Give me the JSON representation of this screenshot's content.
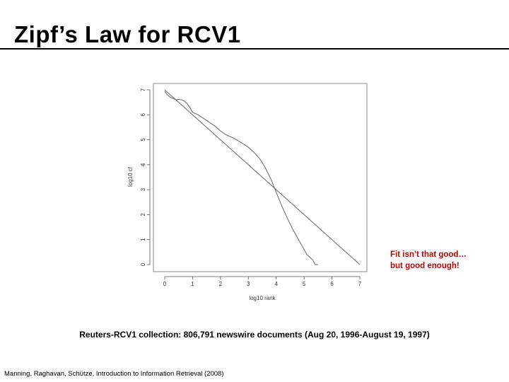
{
  "slide": {
    "title": "Zipf’s Law for RCV1",
    "callout_line1": "Fit isn’t that good…",
    "callout_line2": "but good enough!",
    "caption": "Reuters-RCV1 collection: 806,791 newswire documents (Aug 20, 1996-August 19, 1997)",
    "citation": "Manning, Raghavan, Schütze, Introduction to Information Retrieval (2008)",
    "title_color": "#000000",
    "callout_color": "#c00000"
  },
  "chart_data": {
    "type": "line",
    "title": "",
    "xlabel": "log10 rank",
    "ylabel": "log10 cf",
    "xlim": [
      0,
      7
    ],
    "ylim": [
      0,
      7
    ],
    "x_ticks": [
      0,
      1,
      2,
      3,
      4,
      5,
      6,
      7
    ],
    "y_ticks": [
      0,
      1,
      2,
      3,
      4,
      5,
      6,
      7
    ],
    "grid": false,
    "series": [
      {
        "x": [
          0,
          0.1,
          0.2,
          0.3,
          0.4,
          0.5,
          0.6,
          0.7,
          0.8,
          0.9,
          1.0,
          1.2,
          1.4,
          1.6,
          1.8,
          2.0,
          2.2,
          2.5,
          2.8,
          3.0,
          3.2,
          3.4,
          3.6,
          3.8,
          4.0,
          4.2,
          4.4,
          4.6,
          4.8,
          5.0,
          5.1,
          5.2,
          5.3,
          5.4,
          5.5
        ],
        "y": [
          6.95,
          6.8,
          6.7,
          6.65,
          6.6,
          6.62,
          6.6,
          6.55,
          6.45,
          6.3,
          6.1,
          6.0,
          5.85,
          5.7,
          5.55,
          5.35,
          5.2,
          5.05,
          4.85,
          4.7,
          4.5,
          4.25,
          3.9,
          3.45,
          2.9,
          2.35,
          1.85,
          1.4,
          1.0,
          0.6,
          0.4,
          0.3,
          0.2,
          0.0,
          0.0
        ],
        "color": "#666666"
      },
      {
        "x": [
          0,
          7
        ],
        "y": [
          7.0,
          0.0
        ],
        "color": "#666666"
      }
    ]
  }
}
